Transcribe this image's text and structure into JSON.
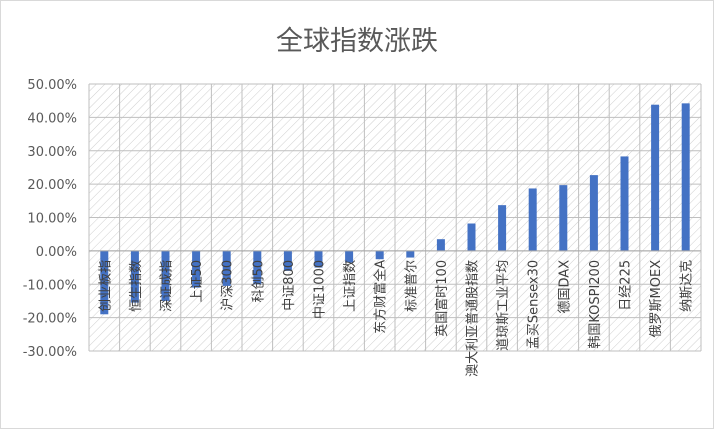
{
  "chart_data": {
    "type": "bar",
    "title": "全球指数涨跌",
    "xlabel": "",
    "ylabel": "",
    "ylim": [
      -0.3,
      0.5
    ],
    "yticks": [
      "50.00%",
      "40.00%",
      "30.00%",
      "20.00%",
      "10.00%",
      "0.00%",
      "-10.00%",
      "-20.00%",
      "-30.00%"
    ],
    "ytick_values": [
      0.5,
      0.4,
      0.3,
      0.2,
      0.1,
      0.0,
      -0.1,
      -0.2,
      -0.3
    ],
    "grid": true,
    "legend": "none",
    "categories": [
      "创业板指",
      "恒生指数",
      "深证成指",
      "上证50",
      "沪深300",
      "科创50",
      "中证800",
      "中证1000",
      "上证指数",
      "东方财富全A",
      "标准普尔",
      "英国富时100",
      "澳大利亚普通股指数",
      "道琼斯工业平均",
      "孟买Sensex30",
      "德国DAX",
      "韩国KOSPI200",
      "日经225",
      "俄罗斯MOEX",
      "纳斯达克"
    ],
    "values": [
      -0.19,
      -0.155,
      -0.15,
      -0.11,
      -0.105,
      -0.1,
      -0.06,
      -0.05,
      -0.035,
      -0.025,
      -0.02,
      0.035,
      0.082,
      0.137,
      0.187,
      0.197,
      0.227,
      0.283,
      0.438,
      0.442
    ],
    "colors": {
      "bar": "#4472c4",
      "axis": "#bfbfbf",
      "grid": "#bfbfbf",
      "title": "#595959",
      "text": "#595959"
    }
  }
}
